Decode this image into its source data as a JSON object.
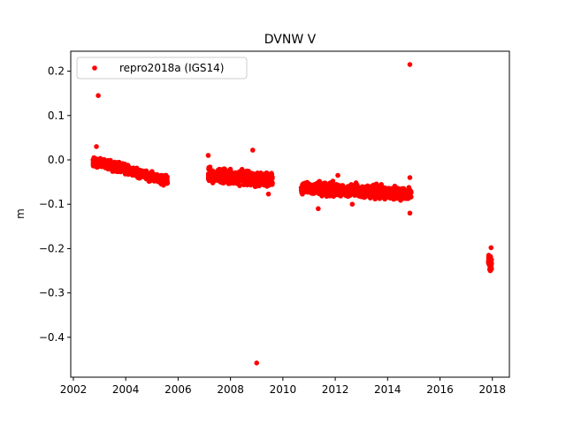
{
  "chart_data": {
    "type": "scatter",
    "title": "DVNW V",
    "xlabel": "",
    "ylabel": "m",
    "xlim": [
      2001.9,
      2018.65
    ],
    "ylim": [
      -0.49,
      0.245
    ],
    "xticks": [
      2002,
      2004,
      2006,
      2008,
      2010,
      2012,
      2014,
      2016,
      2018
    ],
    "xtick_labels": [
      "2002",
      "2004",
      "2006",
      "2008",
      "2010",
      "2012",
      "2014",
      "2016",
      "2018"
    ],
    "yticks": [
      0.2,
      0.1,
      0.0,
      -0.1,
      -0.2,
      -0.3,
      -0.4
    ],
    "ytick_labels": [
      "0.2",
      "0.1",
      "0.0",
      "−0.1",
      "−0.2",
      "−0.3",
      "−0.4"
    ],
    "grid": false,
    "legend_position": "top-left",
    "series": [
      {
        "name": "repro2018a (IGS14)",
        "color": "#ff0000",
        "marker": "circle",
        "segments": [
          {
            "x_start": 2002.75,
            "x_end": 2005.6,
            "y_start": -0.003,
            "y_end": -0.047,
            "spread": 0.007,
            "count": 600
          },
          {
            "x_start": 2007.15,
            "x_end": 2009.6,
            "y_start": -0.035,
            "y_end": -0.045,
            "spread": 0.011,
            "count": 500
          },
          {
            "x_start": 2010.7,
            "x_end": 2014.9,
            "y_start": -0.062,
            "y_end": -0.077,
            "spread": 0.009,
            "count": 900
          },
          {
            "x_start": 2017.85,
            "x_end": 2017.98,
            "y_start": -0.225,
            "y_end": -0.235,
            "spread": 0.01,
            "count": 40
          }
        ],
        "outliers": [
          {
            "x": 2002.95,
            "y": 0.145
          },
          {
            "x": 2002.88,
            "y": 0.03
          },
          {
            "x": 2007.15,
            "y": 0.01
          },
          {
            "x": 2008.85,
            "y": 0.022
          },
          {
            "x": 2009.0,
            "y": -0.458
          },
          {
            "x": 2014.85,
            "y": 0.215
          },
          {
            "x": 2014.85,
            "y": -0.04
          },
          {
            "x": 2014.85,
            "y": -0.12
          },
          {
            "x": 2012.1,
            "y": -0.035
          },
          {
            "x": 2012.65,
            "y": -0.1
          },
          {
            "x": 2011.35,
            "y": -0.11
          },
          {
            "x": 2017.95,
            "y": -0.198
          },
          {
            "x": 2017.92,
            "y": -0.25
          },
          {
            "x": 2009.45,
            "y": -0.077
          }
        ]
      }
    ]
  }
}
